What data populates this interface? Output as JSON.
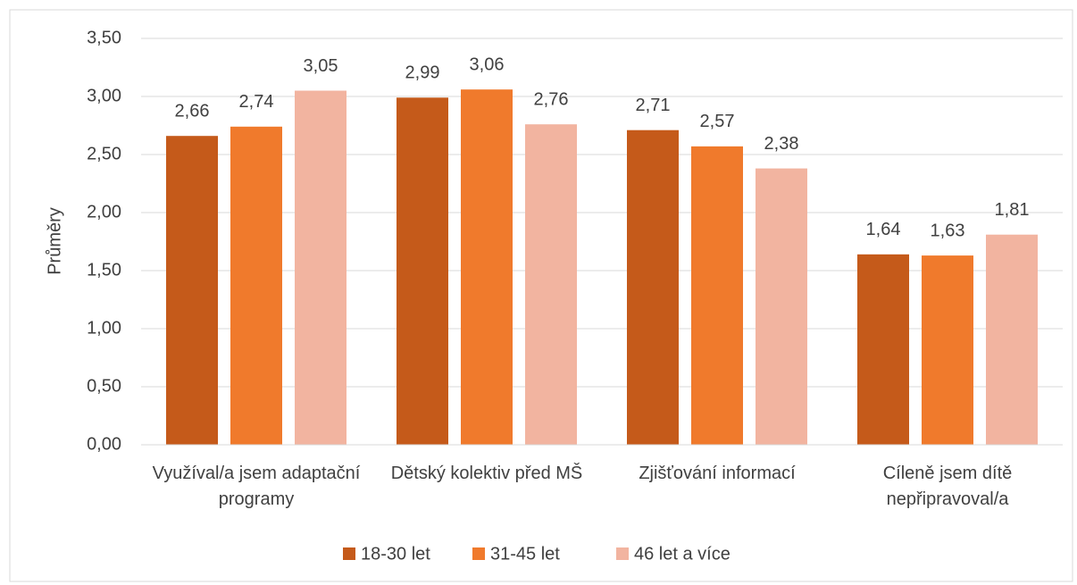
{
  "chart_data": {
    "type": "bar",
    "y_label": "Průměry",
    "categories": [
      "Využíval/a jsem adaptační programy",
      "Dětský kolektiv před MŠ",
      "Zjišťování informací",
      "Cíleně jsem dítě nepřipravoval/a"
    ],
    "series": [
      {
        "name": "18-30 let",
        "color": "#c55a1a",
        "values": [
          2.66,
          2.99,
          2.71,
          1.64
        ],
        "value_labels": [
          "2,66",
          "2,99",
          "2,71",
          "1,64"
        ]
      },
      {
        "name": "31-45 let",
        "color": "#f07a2c",
        "values": [
          2.74,
          3.06,
          2.57,
          1.63
        ],
        "value_labels": [
          "2,74",
          "3,06",
          "2,57",
          "1,63"
        ]
      },
      {
        "name": "46 let a více",
        "color": "#f2b4a0",
        "values": [
          3.05,
          2.76,
          2.38,
          1.81
        ],
        "value_labels": [
          "3,05",
          "2,76",
          "2,38",
          "1,81"
        ]
      }
    ],
    "ylim": [
      0,
      3.5
    ],
    "yticks": [
      {
        "value": 0,
        "label": "0,00"
      },
      {
        "value": 0.5,
        "label": "0,50"
      },
      {
        "value": 1,
        "label": "1,00"
      },
      {
        "value": 1.5,
        "label": "1,50"
      },
      {
        "value": 2,
        "label": "2,00"
      },
      {
        "value": 2.5,
        "label": "2,50"
      },
      {
        "value": 3,
        "label": "3,00"
      },
      {
        "value": 3.5,
        "label": "3,50"
      }
    ],
    "grid": true,
    "legend": "bottom"
  }
}
